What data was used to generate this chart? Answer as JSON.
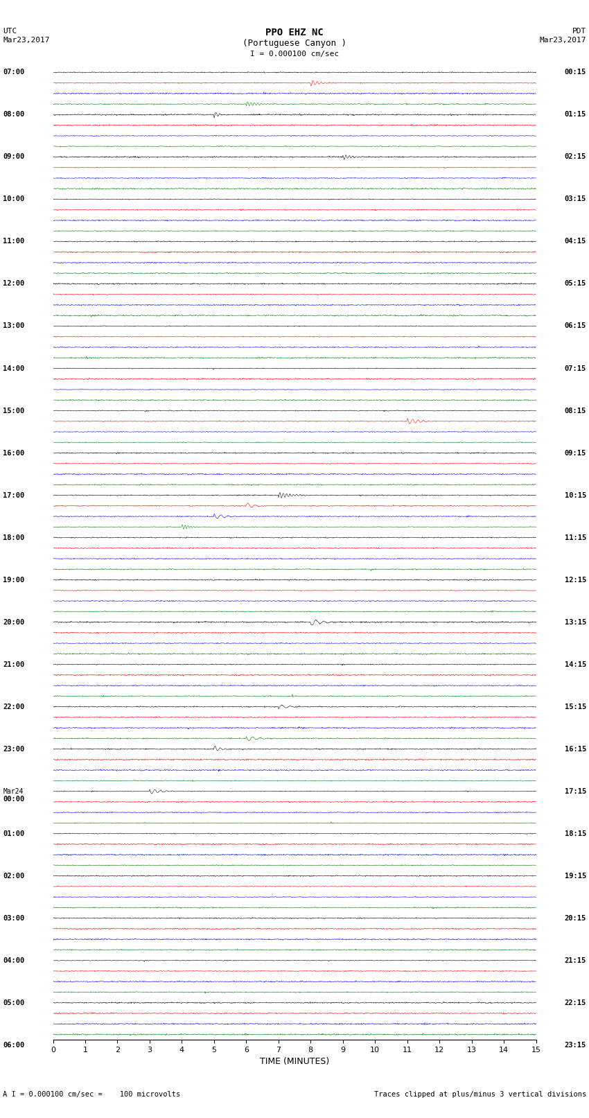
{
  "title_line1": "PPO EHZ NC",
  "title_line2": "(Portuguese Canyon )",
  "title_line3": "I = 0.000100 cm/sec",
  "label_utc": "UTC",
  "label_date_utc": "Mar23,2017",
  "label_pdt": "PDT",
  "label_date_pdt": "Mar23,2017",
  "xlabel": "TIME (MINUTES)",
  "footer_left": "A I = 0.000100 cm/sec =    100 microvolts",
  "footer_right": "Traces clipped at plus/minus 3 vertical divisions",
  "bg_color": "#ffffff",
  "trace_colors": [
    "black",
    "red",
    "blue",
    "green"
  ],
  "x_min": 0,
  "x_max": 15,
  "x_ticks": [
    0,
    1,
    2,
    3,
    4,
    5,
    6,
    7,
    8,
    9,
    10,
    11,
    12,
    13,
    14,
    15
  ],
  "left_times_utc": [
    "07:00",
    "",
    "",
    "",
    "08:00",
    "",
    "",
    "",
    "09:00",
    "",
    "",
    "",
    "10:00",
    "",
    "",
    "",
    "11:00",
    "",
    "",
    "",
    "12:00",
    "",
    "",
    "",
    "13:00",
    "",
    "",
    "",
    "14:00",
    "",
    "",
    "",
    "15:00",
    "",
    "",
    "",
    "16:00",
    "",
    "",
    "",
    "17:00",
    "",
    "",
    "",
    "18:00",
    "",
    "",
    "",
    "19:00",
    "",
    "",
    "",
    "20:00",
    "",
    "",
    "",
    "21:00",
    "",
    "",
    "",
    "22:00",
    "",
    "",
    "",
    "23:00",
    "",
    "",
    "",
    "Mar24\n00:00",
    "",
    "",
    "",
    "01:00",
    "",
    "",
    "",
    "02:00",
    "",
    "",
    "",
    "03:00",
    "",
    "",
    "",
    "04:00",
    "",
    "",
    "",
    "05:00",
    "",
    "",
    "",
    "06:00",
    "",
    "",
    ""
  ],
  "right_times_pdt": [
    "00:15",
    "",
    "",
    "",
    "01:15",
    "",
    "",
    "",
    "02:15",
    "",
    "",
    "",
    "03:15",
    "",
    "",
    "",
    "04:15",
    "",
    "",
    "",
    "05:15",
    "",
    "",
    "",
    "06:15",
    "",
    "",
    "",
    "07:15",
    "",
    "",
    "",
    "08:15",
    "",
    "",
    "",
    "09:15",
    "",
    "",
    "",
    "10:15",
    "",
    "",
    "",
    "11:15",
    "",
    "",
    "",
    "12:15",
    "",
    "",
    "",
    "13:15",
    "",
    "",
    "",
    "14:15",
    "",
    "",
    "",
    "15:15",
    "",
    "",
    "",
    "16:15",
    "",
    "",
    "",
    "17:15",
    "",
    "",
    "",
    "18:15",
    "",
    "",
    "",
    "19:15",
    "",
    "",
    "",
    "20:15",
    "",
    "",
    "",
    "21:15",
    "",
    "",
    "",
    "22:15",
    "",
    "",
    "",
    "23:15",
    "",
    "",
    ""
  ],
  "num_rows": 92,
  "seed": 42,
  "amplitude_scale": 0.35,
  "clip_level": 3.0
}
